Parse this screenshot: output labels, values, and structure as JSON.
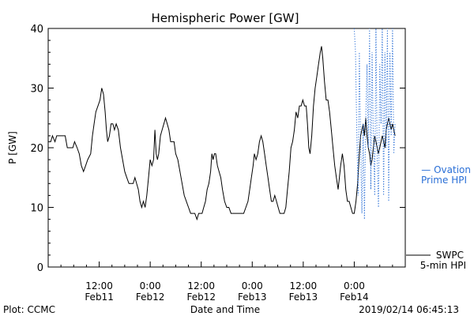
{
  "chart_data": {
    "type": "line",
    "title": "Hemispheric Power [GW]",
    "xlabel": "Date and Time",
    "ylabel": "P [GW]",
    "ylim": [
      0,
      40
    ],
    "xlim": [
      0,
      84
    ],
    "yticks": [
      0,
      10,
      20,
      30,
      40
    ],
    "xticks": [
      {
        "x": 12,
        "line1": "12:00",
        "line2": "Feb11"
      },
      {
        "x": 24,
        "line1": "0:00",
        "line2": "Feb12"
      },
      {
        "x": 36,
        "line1": "12:00",
        "line2": "Feb12"
      },
      {
        "x": 48,
        "line1": "0:00",
        "line2": "Feb13"
      },
      {
        "x": 60,
        "line1": "12:00",
        "line2": "Feb13"
      },
      {
        "x": 72,
        "line1": "0:00",
        "line2": "Feb14"
      }
    ],
    "grid": false,
    "legend_placement": "right",
    "series": [
      {
        "name": "SWPC 5-min HPI",
        "color": "#000000",
        "style": "solid",
        "points": [
          [
            0,
            21
          ],
          [
            0.6,
            21
          ],
          [
            1,
            22
          ],
          [
            1.6,
            21
          ],
          [
            2,
            22
          ],
          [
            3,
            22
          ],
          [
            4,
            22
          ],
          [
            4.5,
            20
          ],
          [
            5,
            20
          ],
          [
            5.8,
            20
          ],
          [
            6.2,
            21
          ],
          [
            6.8,
            20
          ],
          [
            7.3,
            19
          ],
          [
            7.8,
            17
          ],
          [
            8.3,
            16
          ],
          [
            8.8,
            17
          ],
          [
            9.3,
            18
          ],
          [
            10,
            19
          ],
          [
            10.4,
            22
          ],
          [
            10.8,
            24
          ],
          [
            11.2,
            26
          ],
          [
            11.7,
            27
          ],
          [
            12.2,
            28
          ],
          [
            12.6,
            30
          ],
          [
            13,
            29
          ],
          [
            13.4,
            26
          ],
          [
            13.7,
            23
          ],
          [
            14,
            21
          ],
          [
            14.4,
            22
          ],
          [
            14.8,
            24
          ],
          [
            15.2,
            24
          ],
          [
            15.6,
            23
          ],
          [
            16,
            24
          ],
          [
            16.5,
            23
          ],
          [
            17,
            20
          ],
          [
            17.5,
            18
          ],
          [
            18,
            16
          ],
          [
            18.5,
            15
          ],
          [
            19,
            14
          ],
          [
            19.5,
            14
          ],
          [
            20,
            14
          ],
          [
            20.4,
            15
          ],
          [
            20.8,
            14
          ],
          [
            21.2,
            13
          ],
          [
            21.6,
            11
          ],
          [
            22,
            10
          ],
          [
            22.4,
            11
          ],
          [
            22.8,
            10
          ],
          [
            23.2,
            12
          ],
          [
            23.6,
            15
          ],
          [
            24,
            18
          ],
          [
            24.4,
            17
          ],
          [
            24.8,
            18
          ],
          [
            25.1,
            23
          ],
          [
            25.4,
            19
          ],
          [
            25.7,
            18
          ],
          [
            26,
            19
          ],
          [
            26.4,
            22
          ],
          [
            26.8,
            23
          ],
          [
            27.2,
            24
          ],
          [
            27.6,
            25
          ],
          [
            28,
            24
          ],
          [
            28.4,
            23
          ],
          [
            28.8,
            21
          ],
          [
            29.2,
            21
          ],
          [
            29.6,
            21
          ],
          [
            30,
            19
          ],
          [
            30.5,
            18
          ],
          [
            31,
            16
          ],
          [
            31.5,
            14
          ],
          [
            32,
            12
          ],
          [
            32.5,
            11
          ],
          [
            33,
            10
          ],
          [
            33.5,
            9
          ],
          [
            34,
            9
          ],
          [
            34.5,
            9
          ],
          [
            35,
            8
          ],
          [
            35.4,
            9
          ],
          [
            35.8,
            9
          ],
          [
            36.2,
            9
          ],
          [
            36.6,
            10
          ],
          [
            37,
            11
          ],
          [
            37.4,
            13
          ],
          [
            37.8,
            14
          ],
          [
            38.2,
            16
          ],
          [
            38.5,
            19
          ],
          [
            38.8,
            18
          ],
          [
            39.1,
            19
          ],
          [
            39.4,
            19
          ],
          [
            39.8,
            17
          ],
          [
            40.2,
            16
          ],
          [
            40.6,
            15
          ],
          [
            41,
            13
          ],
          [
            41.5,
            11
          ],
          [
            42,
            10
          ],
          [
            42.5,
            10
          ],
          [
            43,
            9
          ],
          [
            44,
            9
          ],
          [
            45,
            9
          ],
          [
            46,
            9
          ],
          [
            46.5,
            10
          ],
          [
            47,
            11
          ],
          [
            47.4,
            13
          ],
          [
            47.8,
            15
          ],
          [
            48.2,
            17
          ],
          [
            48.5,
            19
          ],
          [
            48.9,
            18
          ],
          [
            49.3,
            19
          ],
          [
            49.7,
            21
          ],
          [
            50.1,
            22
          ],
          [
            50.5,
            21
          ],
          [
            50.9,
            19
          ],
          [
            51.3,
            17
          ],
          [
            51.7,
            15
          ],
          [
            52.1,
            13
          ],
          [
            52.5,
            11
          ],
          [
            52.9,
            11
          ],
          [
            53.3,
            12
          ],
          [
            53.7,
            11
          ],
          [
            54.1,
            10
          ],
          [
            54.5,
            9
          ],
          [
            55,
            9
          ],
          [
            55.5,
            9
          ],
          [
            55.9,
            10
          ],
          [
            56.3,
            13
          ],
          [
            56.7,
            16
          ],
          [
            57.1,
            20
          ],
          [
            57.5,
            21
          ],
          [
            57.9,
            23
          ],
          [
            58.3,
            26
          ],
          [
            58.7,
            25
          ],
          [
            59.1,
            27
          ],
          [
            59.5,
            27
          ],
          [
            59.9,
            28
          ],
          [
            60.3,
            27
          ],
          [
            60.7,
            27
          ],
          [
            61,
            24
          ],
          [
            61.3,
            20
          ],
          [
            61.6,
            19
          ],
          [
            62,
            22
          ],
          [
            62.4,
            27
          ],
          [
            62.8,
            30
          ],
          [
            63.2,
            32
          ],
          [
            63.6,
            34
          ],
          [
            64,
            36
          ],
          [
            64.3,
            37
          ],
          [
            64.6,
            35
          ],
          [
            65,
            31
          ],
          [
            65.4,
            28
          ],
          [
            65.8,
            28
          ],
          [
            66.2,
            26
          ],
          [
            66.6,
            23
          ],
          [
            67,
            20
          ],
          [
            67.4,
            17
          ],
          [
            67.8,
            15
          ],
          [
            68.2,
            13
          ],
          [
            68.5,
            15
          ],
          [
            68.8,
            17
          ],
          [
            69.2,
            19
          ],
          [
            69.6,
            17
          ],
          [
            70,
            13
          ],
          [
            70.4,
            11
          ],
          [
            70.8,
            11
          ],
          [
            71.2,
            10
          ],
          [
            71.6,
            9
          ],
          [
            72,
            9
          ],
          [
            72.4,
            11
          ],
          [
            72.8,
            14
          ],
          [
            73.2,
            19
          ],
          [
            73.5,
            22
          ],
          [
            73.8,
            23
          ],
          [
            74.1,
            24
          ],
          [
            74.4,
            22
          ],
          [
            74.7,
            25
          ],
          [
            75,
            22
          ],
          [
            75.3,
            20
          ],
          [
            75.6,
            19
          ],
          [
            75.9,
            17
          ],
          [
            76.2,
            18
          ],
          [
            76.5,
            20
          ],
          [
            76.8,
            22
          ],
          [
            77.1,
            21
          ],
          [
            77.4,
            20
          ],
          [
            77.7,
            19
          ],
          [
            78,
            20
          ],
          [
            78.3,
            21
          ],
          [
            78.6,
            22
          ],
          [
            78.9,
            21
          ],
          [
            79.2,
            20
          ],
          [
            79.5,
            23
          ],
          [
            79.8,
            24
          ],
          [
            80.1,
            25
          ],
          [
            80.4,
            24
          ],
          [
            80.7,
            23
          ],
          [
            81,
            24
          ],
          [
            81.3,
            23
          ],
          [
            81.6,
            22
          ]
        ]
      },
      {
        "name": "Ovation Prime HPI",
        "color": "#2a6fd6",
        "style": "dotted",
        "points": [
          [
            72,
            40
          ],
          [
            72.3,
            36
          ],
          [
            72.6,
            22
          ],
          [
            72.9,
            12
          ],
          [
            73.2,
            36
          ],
          [
            73.5,
            20
          ],
          [
            73.8,
            9
          ],
          [
            74.1,
            24
          ],
          [
            74.4,
            8
          ],
          [
            74.7,
            25
          ],
          [
            75,
            34
          ],
          [
            75.3,
            20
          ],
          [
            75.6,
            40
          ],
          [
            75.9,
            13
          ],
          [
            76.2,
            36
          ],
          [
            76.5,
            22
          ],
          [
            76.8,
            12
          ],
          [
            77.1,
            40
          ],
          [
            77.4,
            18
          ],
          [
            77.7,
            10
          ],
          [
            78,
            34
          ],
          [
            78.3,
            24
          ],
          [
            78.6,
            40
          ],
          [
            78.9,
            12
          ],
          [
            79.2,
            36
          ],
          [
            79.5,
            20
          ],
          [
            79.8,
            40
          ],
          [
            80.1,
            11
          ],
          [
            80.4,
            36
          ],
          [
            80.7,
            22
          ],
          [
            81,
            40
          ],
          [
            81.3,
            19
          ],
          [
            81.6,
            24
          ]
        ]
      }
    ]
  },
  "legend": {
    "ovation_line1": "— Ovation",
    "ovation_line2": "Prime HPI",
    "swpc_line1": "SWPC",
    "swpc_line2": "5-min HPI"
  },
  "footer": {
    "left": "Plot: CCMC",
    "right": "2019/02/14 06:45:13"
  }
}
